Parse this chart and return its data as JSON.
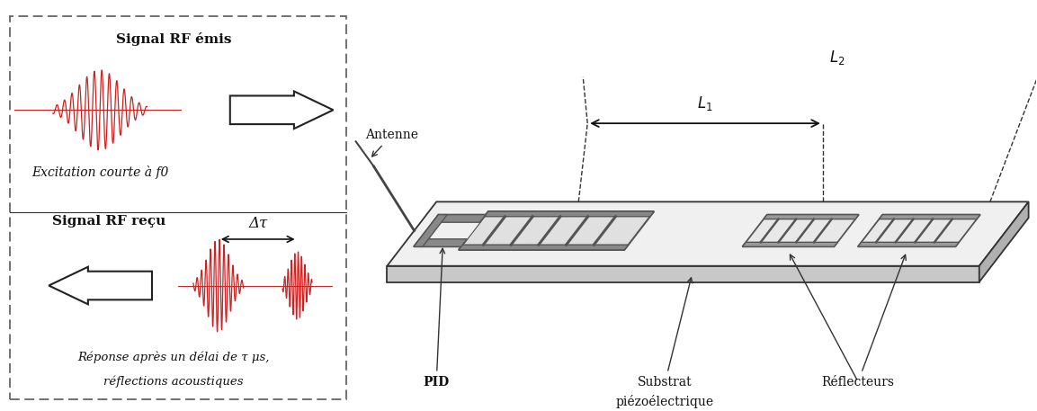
{
  "bg_color": "#ffffff",
  "dashed_box_color": "#666666",
  "text_color": "#111111",
  "signal_color": "#cc2222",
  "arrow_color": "#222222",
  "title_top": "Signal RF émis",
  "title_bottom": "Signal RF reçu",
  "label_excitation": "Excitation courte à f0",
  "label_reponse1": "Réponse après un délai de τ μs,",
  "label_reponse2": "réflections acoustiques",
  "label_delta_tau": "Δτ",
  "label_antenne": "Antenne",
  "label_pid": "PID",
  "label_substrat1": "Substrat",
  "label_substrat2": "piézoélectrique",
  "label_reflecteurs": "Réflecteurs",
  "label_L1": "$L_1$",
  "label_L2": "$L_2$"
}
